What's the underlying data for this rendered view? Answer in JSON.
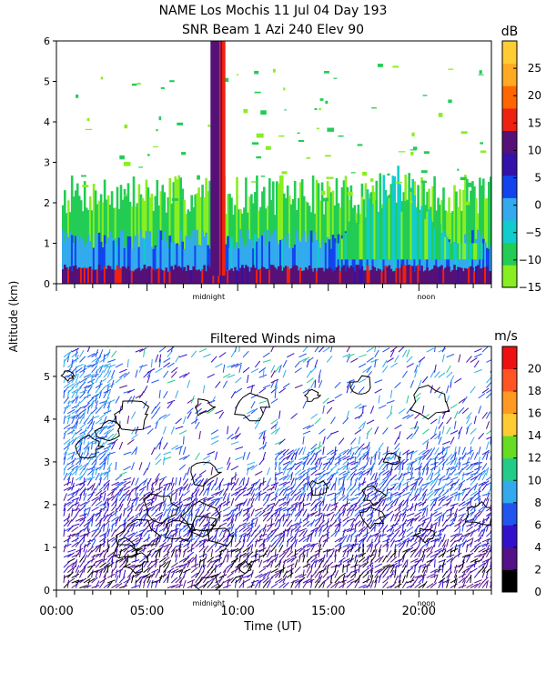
{
  "header": {
    "title_line1": "NAME Los Mochis   11 Jul 04 Day 193",
    "title_line2": "SNR Beam 1 Azi 240 Elev 90"
  },
  "shared_axis": {
    "ylabel": "Altitude (km)",
    "xlabel": "Time (UT)",
    "x_tick_labels": [
      "00:00",
      "05:00",
      "10:00",
      "15:00",
      "20:00"
    ],
    "x_tick_hours": [
      0,
      5,
      10,
      15,
      20
    ],
    "markers": [
      {
        "label": "midnight",
        "hour": 8.4
      },
      {
        "label": "noon",
        "hour": 20.4
      }
    ]
  },
  "colors": {
    "snr_scale": [
      "#88ee22",
      "#22cc55",
      "#11cccc",
      "#33aaee",
      "#1144ee",
      "#3311aa",
      "#551177",
      "#ee2211",
      "#ff6600",
      "#ffaa22",
      "#ffcc33"
    ],
    "wind_scale": [
      "#000000",
      "#551188",
      "#3311cc",
      "#2255ee",
      "#33aaee",
      "#22cc88",
      "#66dd22",
      "#ffcc33",
      "#ff9922",
      "#ff5522",
      "#ee1111"
    ]
  },
  "chart_data": [
    {
      "type": "heatmap",
      "title": "SNR Beam 1 Azi 240 Elev 90",
      "xlabel": "",
      "ylabel": "Altitude (km)",
      "xlim": [
        0,
        24
      ],
      "ylim": [
        0,
        6
      ],
      "y_ticks": [
        0,
        1,
        2,
        3,
        4,
        5,
        6
      ],
      "colorbar": {
        "unit": "dB",
        "range": [
          -15,
          30
        ],
        "tick_labels": [
          "25",
          "20",
          "15",
          "10",
          "5",
          "0",
          "−5",
          "−10",
          "−15"
        ],
        "tick_values": [
          25,
          20,
          15,
          10,
          5,
          0,
          -5,
          -10,
          -15
        ]
      },
      "layers": [
        {
          "hour_start": 0.3,
          "hour_end": 24,
          "alt_top_km": 0.35,
          "value_db": 12
        },
        {
          "hour_start": 0.3,
          "hour_end": 24,
          "alt_top_km": 1.0,
          "value_db": 0
        },
        {
          "hour_start": 0.3,
          "hour_end": 24,
          "alt_top_km": 2.0,
          "value_db": -10
        }
      ],
      "features": [
        {
          "name": "plume",
          "hour_start": 8.5,
          "hour_end": 9.3,
          "alt_bottom_km": 0.2,
          "alt_top_km": 6.0,
          "value_db": 12
        },
        {
          "name": "boundary-layer-growth",
          "hour_start": 15.5,
          "hour_end": 23.5,
          "alt_bottom_km": 1.0,
          "alt_top_km": 3.0,
          "value_db": -8
        }
      ]
    },
    {
      "type": "heatmap",
      "title": "Filtered Winds nima",
      "xlabel": "Time (UT)",
      "ylabel": "Altitude (km)",
      "xlim": [
        0,
        24
      ],
      "ylim": [
        0,
        5.7
      ],
      "y_ticks": [
        0,
        1,
        2,
        3,
        4,
        5
      ],
      "colorbar": {
        "unit": "m/s",
        "range": [
          0,
          22
        ],
        "tick_labels": [
          "20",
          "18",
          "16",
          "14",
          "12",
          "10",
          "8",
          "6",
          "4",
          "2",
          "0"
        ],
        "tick_values": [
          20,
          18,
          16,
          14,
          12,
          10,
          8,
          6,
          4,
          2,
          0
        ]
      },
      "wind_regions": [
        {
          "hour_start": 0.3,
          "hour_end": 24,
          "alt_bottom_km": 0,
          "alt_top_km": 1.0,
          "speed_ms": 3
        },
        {
          "hour_start": 0.3,
          "hour_end": 24,
          "alt_bottom_km": 1.0,
          "alt_top_km": 2.5,
          "speed_ms": 5
        },
        {
          "hour_start": 0.3,
          "hour_end": 3.0,
          "alt_bottom_km": 2.5,
          "alt_top_km": 5.5,
          "speed_ms": 8
        },
        {
          "hour_start": 12.0,
          "hour_end": 24,
          "alt_bottom_km": 2.0,
          "alt_top_km": 3.2,
          "speed_ms": 7
        }
      ]
    }
  ]
}
